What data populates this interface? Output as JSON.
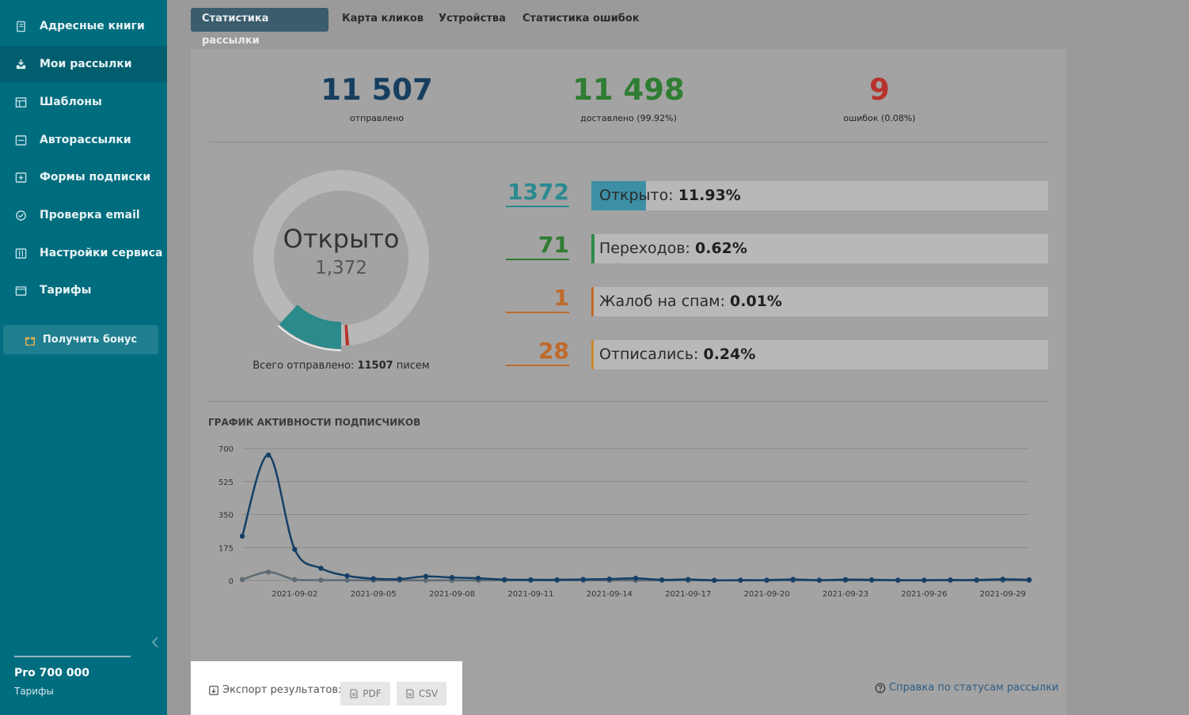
{
  "sidebar": {
    "items": [
      {
        "label": "Адресные книги",
        "icon": "address-book-icon"
      },
      {
        "label": "Мои рассылки",
        "icon": "mailing-icon"
      },
      {
        "label": "Шаблоны",
        "icon": "templates-icon"
      },
      {
        "label": "Авторассылки",
        "icon": "automation-icon"
      },
      {
        "label": "Формы подписки",
        "icon": "form-icon"
      },
      {
        "label": "Проверка email",
        "icon": "check-icon"
      },
      {
        "label": "Настройки сервиса",
        "icon": "settings-icon"
      },
      {
        "label": "Тарифы",
        "icon": "wallet-icon"
      }
    ],
    "active_index": 1,
    "bonus_label": "Получить бонус",
    "plan_name": "Pro 700 000",
    "plan_link": "Тарифы"
  },
  "tabs": [
    {
      "label": "Статистика рассылки",
      "active": true
    },
    {
      "label": "Карта кликов",
      "active": false
    },
    {
      "label": "Устройства",
      "active": false
    },
    {
      "label": "Статистика ошибок",
      "active": false
    }
  ],
  "summary": {
    "sent": {
      "value": "11 507",
      "label": "отправлено",
      "color": "#173e5e"
    },
    "delivered": {
      "value": "11 498",
      "label_prefix": "доставлено ",
      "label_pct": "(99.92%)",
      "color": "#2f7d32"
    },
    "errors": {
      "value": "9",
      "label_prefix": "ошибок ",
      "label_pct": "(0.08%)",
      "color": "#b8332b"
    }
  },
  "donut": {
    "title": "Открыто",
    "value": "1,372",
    "footer_prefix": "Всего отправлено: ",
    "footer_value": "11507",
    "footer_suffix": " писем",
    "opened_fraction": 0.1193,
    "other_fraction": 0.0062
  },
  "metrics": [
    {
      "number": "1372",
      "label": "Открыто:",
      "pct": "11.93%",
      "fraction": 0.1193,
      "color": "#2b8a8f",
      "fill": "#3d8fa6"
    },
    {
      "number": "71",
      "label": "Переходов:",
      "pct": "0.62%",
      "fraction": 0.0062,
      "color": "#2f7d32",
      "fill": "#2f8a4a"
    },
    {
      "number": "1",
      "label": "Жалоб на спам:",
      "pct": "0.01%",
      "fraction": 0.0001,
      "color": "#c0692a",
      "fill": "#c0692a"
    },
    {
      "number": "28",
      "label": "Отписались:",
      "pct": "0.24%",
      "fraction": 0.0024,
      "color": "#c0692a",
      "fill": "#c88a2a"
    }
  ],
  "chart_title": "ГРАФИК АКТИВНОСТИ ПОДПИСЧИКОВ",
  "chart_data": {
    "type": "line",
    "title": "ГРАФИК АКТИВНОСТИ ПОДПИСЧИКОВ",
    "xlabel": "",
    "ylabel": "",
    "ylim": [
      0,
      700
    ],
    "yticks": [
      0,
      175,
      350,
      525,
      700
    ],
    "xtick_labels": [
      "2021-09-02",
      "2021-09-05",
      "2021-09-08",
      "2021-09-11",
      "2021-09-14",
      "2021-09-17",
      "2021-09-20",
      "2021-09-23",
      "2021-09-26",
      "2021-09-29"
    ],
    "x": [
      "2021-08-31",
      "2021-09-01",
      "2021-09-02",
      "2021-09-03",
      "2021-09-04",
      "2021-09-05",
      "2021-09-06",
      "2021-09-07",
      "2021-09-08",
      "2021-09-09",
      "2021-09-10",
      "2021-09-11",
      "2021-09-12",
      "2021-09-13",
      "2021-09-14",
      "2021-09-15",
      "2021-09-16",
      "2021-09-17",
      "2021-09-18",
      "2021-09-19",
      "2021-09-20",
      "2021-09-21",
      "2021-09-22",
      "2021-09-23",
      "2021-09-24",
      "2021-09-25",
      "2021-09-26",
      "2021-09-27",
      "2021-09-28",
      "2021-09-29",
      "2021-09-30"
    ],
    "series": [
      {
        "color": "#153f66",
        "values": [
          235,
          665,
          165,
          65,
          25,
          10,
          8,
          22,
          16,
          12,
          5,
          4,
          4,
          6,
          8,
          12,
          4,
          6,
          1,
          2,
          2,
          6,
          2,
          5,
          4,
          2,
          2,
          3,
          3,
          7,
          4
        ]
      },
      {
        "color": "#5d6b74",
        "values": [
          5,
          45,
          5,
          2,
          2,
          1,
          1,
          1,
          1,
          1,
          1,
          1,
          1,
          1,
          1,
          1,
          1,
          1,
          1,
          1,
          1,
          1,
          1,
          1,
          1,
          1,
          1,
          1,
          1,
          1,
          1
        ]
      }
    ],
    "grid": true,
    "legend": "none"
  },
  "export": {
    "label": "Экспорт результатов:",
    "pdf": "PDF",
    "csv": "CSV"
  },
  "help_link": "Справка по статусам рассылки"
}
